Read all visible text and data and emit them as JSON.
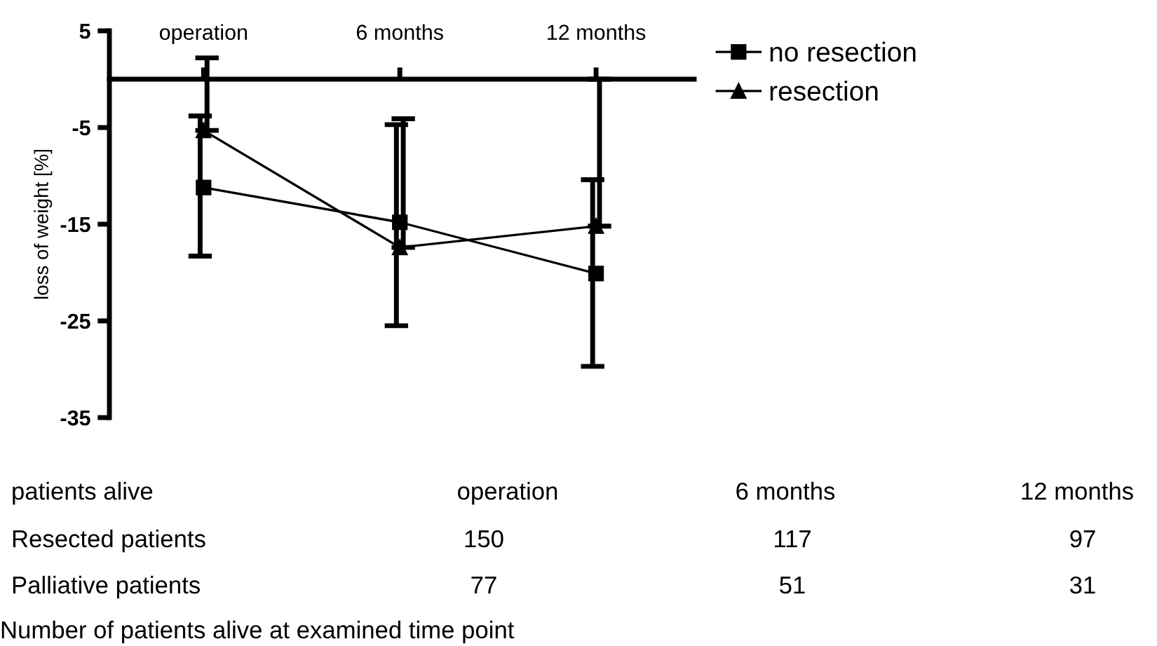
{
  "chart_data": {
    "type": "line",
    "ylabel": "loss of weight [%]",
    "categories": [
      "operation",
      "6 months",
      "12 months"
    ],
    "series": [
      {
        "name": "no resection",
        "color": "#000000",
        "marker": "square",
        "values": [
          -11.2,
          -14.8,
          -20.1
        ],
        "errors": [
          [
            -18.3,
            -3.8
          ],
          [
            -25.5,
            -4.7
          ],
          [
            -29.7,
            -10.4
          ]
        ]
      },
      {
        "name": "resection",
        "color": "#000000",
        "marker": "triangle",
        "values": [
          -5.3,
          -17.4,
          -15.2
        ],
        "errors": [
          [
            -5.3,
            2.2
          ],
          [
            -17.4,
            -4.1
          ],
          [
            -15.2,
            0.0
          ]
        ]
      }
    ],
    "ylim": [
      -35,
      5
    ],
    "yticks": [
      5,
      -5,
      -15,
      -25,
      -35
    ],
    "grid": false,
    "legend": "top right",
    "annotations": [
      "patients alive",
      "operation",
      "6 months",
      "12 months",
      "Resected patients",
      "150",
      "117",
      "97",
      "Palliative patients",
      "77",
      "51",
      "31",
      "Number of patients alive at examined time point"
    ]
  }
}
